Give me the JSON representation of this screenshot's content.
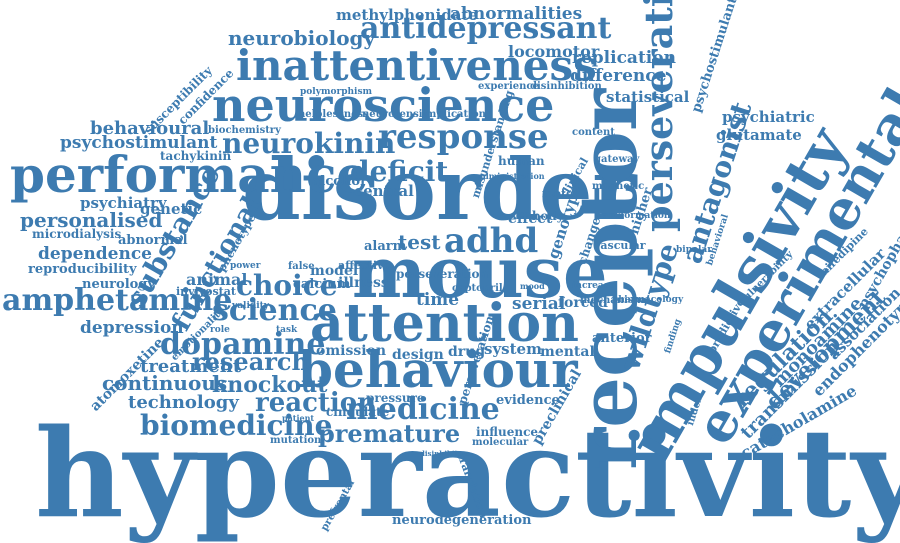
{
  "color": "#3d7bb0",
  "words": [
    {
      "key": "hyperactivity",
      "text": "hyperactivity"
    },
    {
      "key": "disorder",
      "text": "disorder"
    },
    {
      "key": "mouse",
      "text": "mouse"
    },
    {
      "key": "neuroscience",
      "text": "neuroscience"
    },
    {
      "key": "performance",
      "text": "performance"
    },
    {
      "key": "attention",
      "text": "attention"
    },
    {
      "key": "behaviour",
      "text": "behaviour"
    },
    {
      "key": "receptor",
      "text": "receptor"
    },
    {
      "key": "impulsivity",
      "text": "impulsivity"
    },
    {
      "key": "experimental",
      "text": "experimental"
    },
    {
      "key": "inattentiveness",
      "text": "inattentiveness"
    },
    {
      "key": "antidepressant",
      "text": "antidepressant"
    },
    {
      "key": "neurokinin",
      "text": "neurokinin"
    },
    {
      "key": "response",
      "text": "response"
    },
    {
      "key": "amphetamine",
      "text": "amphetamine"
    },
    {
      "key": "medicine",
      "text": "medicine"
    },
    {
      "key": "biomedicine",
      "text": "biomedicine"
    },
    {
      "key": "premature",
      "text": "premature"
    },
    {
      "key": "dopamine",
      "text": "dopamine"
    },
    {
      "key": "science",
      "text": "science"
    },
    {
      "key": "choice",
      "text": "choice"
    },
    {
      "key": "adhd",
      "text": "adhd"
    },
    {
      "key": "deficit",
      "text": "deficit"
    },
    {
      "key": "research",
      "text": "research"
    },
    {
      "key": "reaction",
      "text": "reaction"
    },
    {
      "key": "knockout",
      "text": "knockout"
    },
    {
      "key": "treatment",
      "text": "treatment"
    },
    {
      "key": "continuous",
      "text": "continuous"
    },
    {
      "key": "technology",
      "text": "technology"
    },
    {
      "key": "functional",
      "text": "functional"
    },
    {
      "key": "substance",
      "text": "substance"
    },
    {
      "key": "perseveration",
      "text": "perseveration"
    },
    {
      "key": "antagonist",
      "text": "antagonist"
    },
    {
      "key": "wildtype",
      "text": "wildtype"
    },
    {
      "key": "regulation",
      "text": "regulation"
    },
    {
      "key": "development",
      "text": "development"
    },
    {
      "key": "transmission",
      "text": "transmission"
    },
    {
      "key": "monoamine",
      "text": "monoamine"
    },
    {
      "key": "catecholamine",
      "text": "catecholamine"
    },
    {
      "key": "endophenotype",
      "text": "endophenotype"
    },
    {
      "key": "psychopharmacology",
      "text": "psychopharmacology"
    },
    {
      "key": "association",
      "text": "association"
    },
    {
      "key": "extracellular",
      "text": "extracellular"
    },
    {
      "key": "neurobiology",
      "text": "neurobiology"
    },
    {
      "key": "methylphenidate",
      "text": "methylphenidate"
    },
    {
      "key": "abnormalities",
      "text": "abnormalities"
    },
    {
      "key": "locomotor",
      "text": "locomotor"
    },
    {
      "key": "replication",
      "text": "replication"
    },
    {
      "key": "difference",
      "text": "difference"
    },
    {
      "key": "statistical",
      "text": "statistical"
    },
    {
      "key": "psychostimulants",
      "text": "psychostimulants"
    },
    {
      "key": "psychiatric",
      "text": "psychiatric"
    },
    {
      "key": "glutamate",
      "text": "glutamate"
    },
    {
      "key": "behavioural",
      "text": "behavioural"
    },
    {
      "key": "psychostimulant",
      "text": "psychostimulant"
    },
    {
      "key": "tachykinin",
      "text": "tachykinin"
    },
    {
      "key": "personalised",
      "text": "personalised"
    },
    {
      "key": "psychiatry",
      "text": "psychiatry"
    },
    {
      "key": "microdialysis",
      "text": "microdialysis"
    },
    {
      "key": "genetic",
      "text": "genetic"
    },
    {
      "key": "dependence",
      "text": "dependence"
    },
    {
      "key": "reproducibility",
      "text": "reproducibility"
    },
    {
      "key": "neurology",
      "text": "neurology"
    },
    {
      "key": "depression",
      "text": "depression"
    },
    {
      "key": "animal",
      "text": "animal"
    },
    {
      "key": "invivostat",
      "text": "invivostat"
    },
    {
      "key": "model",
      "text": "model"
    },
    {
      "key": "calcium",
      "text": "calcium"
    },
    {
      "key": "illness",
      "text": "illness"
    },
    {
      "key": "test",
      "text": "test"
    },
    {
      "key": "alcohol",
      "text": "alcohol"
    },
    {
      "key": "central",
      "text": "central"
    },
    {
      "key": "alarm",
      "text": "alarm"
    },
    {
      "key": "time",
      "text": "time"
    },
    {
      "key": "serial",
      "text": "serial"
    },
    {
      "key": "forced",
      "text": "forced"
    },
    {
      "key": "system",
      "text": "system"
    },
    {
      "key": "mental",
      "text": "mental"
    },
    {
      "key": "anterior",
      "text": "anterior"
    },
    {
      "key": "omission",
      "text": "omission"
    },
    {
      "key": "design",
      "text": "design"
    },
    {
      "key": "drug",
      "text": "drug"
    },
    {
      "key": "pressure",
      "text": "pressure"
    },
    {
      "key": "evidence",
      "text": "evidence"
    },
    {
      "key": "cingulate",
      "text": "cingulate"
    },
    {
      "key": "influence",
      "text": "influence"
    },
    {
      "key": "molecular",
      "text": "molecular"
    },
    {
      "key": "preclinical",
      "text": "preclinical"
    },
    {
      "key": "translation",
      "text": "translation"
    },
    {
      "key": "neurodegeneration",
      "text": "neurodegeneration"
    },
    {
      "key": "atomoxetine",
      "text": "atomoxetine"
    },
    {
      "key": "susceptibility",
      "text": "susceptibility"
    },
    {
      "key": "confidence",
      "text": "confidence"
    },
    {
      "key": "biochemistry",
      "text": "biochemistry"
    },
    {
      "key": "helplessness",
      "text": "helplessness"
    },
    {
      "key": "neurotensin",
      "text": "neurotensin"
    },
    {
      "key": "implication",
      "text": "implication"
    },
    {
      "key": "polymorphism",
      "text": "polymorphism"
    },
    {
      "key": "experience",
      "text": "experience"
    },
    {
      "key": "disinhibition",
      "text": "disinhibition"
    },
    {
      "key": "channel",
      "text": "channel"
    },
    {
      "key": "abnormal",
      "text": "abnormal"
    },
    {
      "key": "phenotype",
      "text": "phenotype"
    },
    {
      "key": "emotionality",
      "text": "emotionality"
    },
    {
      "key": "mutation",
      "text": "mutation"
    },
    {
      "key": "validity",
      "text": "validity"
    },
    {
      "key": "task",
      "text": "task"
    },
    {
      "key": "effect",
      "text": "effect"
    },
    {
      "key": "body",
      "text": "body"
    },
    {
      "key": "biology",
      "text": "biology"
    },
    {
      "key": "human",
      "text": "human"
    },
    {
      "key": "motor",
      "text": "motor"
    },
    {
      "key": "genotype",
      "text": "genotype"
    },
    {
      "key": "screen",
      "text": "screen"
    },
    {
      "key": "change",
      "text": "change"
    },
    {
      "key": "higher",
      "text": "higher"
    },
    {
      "key": "mechanism",
      "text": "mechanism"
    },
    {
      "key": "vascular",
      "text": "vascular"
    },
    {
      "key": "increase",
      "text": "increase"
    },
    {
      "key": "content",
      "text": "content"
    },
    {
      "key": "gateway",
      "text": "gateway"
    },
    {
      "key": "magnetic",
      "text": "magnetic"
    },
    {
      "key": "transformation",
      "text": "transformation"
    },
    {
      "key": "pharmacology",
      "text": "pharmacology"
    },
    {
      "key": "vulnerability",
      "text": "vulnerability"
    },
    {
      "key": "nifedipine",
      "text": "nifedipine"
    },
    {
      "key": "behavioral",
      "text": "behavioral"
    },
    {
      "key": "bipolar",
      "text": "bipolar"
    },
    {
      "key": "power",
      "text": "power"
    },
    {
      "key": "role",
      "text": "role"
    },
    {
      "key": "false",
      "text": "false"
    },
    {
      "key": "affective",
      "text": "affective"
    },
    {
      "key": "captopril",
      "text": "captopril"
    },
    {
      "key": "perseveration_small",
      "text": "perseveration"
    },
    {
      "key": "predictive",
      "text": "predictive"
    },
    {
      "key": "index",
      "text": "index"
    },
    {
      "key": "clinical",
      "text": "clinical"
    },
    {
      "key": "mood",
      "text": "mood"
    },
    {
      "key": "administration",
      "text": "administration"
    },
    {
      "key": "misunderstanding",
      "text": "misunderstanding"
    },
    {
      "key": "disinhibitors",
      "text": "disinhibitors"
    },
    {
      "key": "prefrontal",
      "text": "prefrontal"
    },
    {
      "key": "patient",
      "text": "patient"
    },
    {
      "key": "finding",
      "text": "finding"
    }
  ]
}
